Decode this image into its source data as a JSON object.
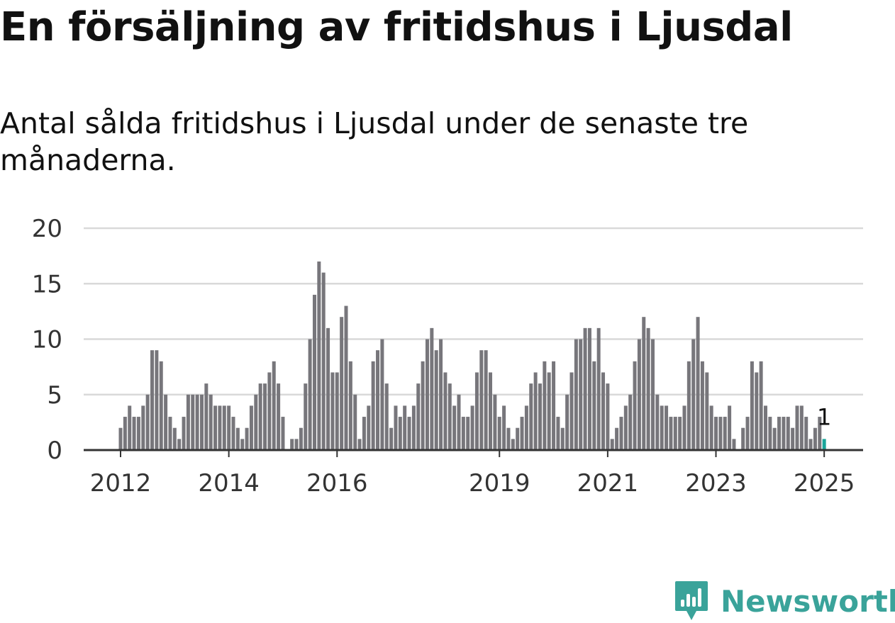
{
  "title": "En försäljning av fritidshus i Ljusdal",
  "subtitle": "Antal sålda fritidshus i Ljusdal under de senaste tre månaderna.",
  "brand": {
    "name": "Newsworthy",
    "icon": "newsworthy-logo-icon",
    "color": "#3aa39a"
  },
  "colors": {
    "bar": "#77767b",
    "highlight": "#1aa59a",
    "grid": "#d9d9d9",
    "axis": "#333333"
  },
  "chart_data": {
    "type": "bar",
    "ylim": [
      0,
      20
    ],
    "yticks": [
      0,
      5,
      10,
      15,
      20
    ],
    "grid": true,
    "xtick_labels": [
      {
        "label": "2012",
        "at": "2012-01"
      },
      {
        "label": "2014",
        "at": "2014-01"
      },
      {
        "label": "2016",
        "at": "2016-01"
      },
      {
        "label": "2019",
        "at": "2019-01"
      },
      {
        "label": "2021",
        "at": "2021-01"
      },
      {
        "label": "2023",
        "at": "2023-01"
      },
      {
        "label": "2025",
        "at": "2025-01"
      }
    ],
    "highlight": {
      "x": "2025-01",
      "value": 1,
      "label": "1"
    },
    "categories": [
      "2012-01",
      "2012-02",
      "2012-03",
      "2012-04",
      "2012-05",
      "2012-06",
      "2012-07",
      "2012-08",
      "2012-09",
      "2012-10",
      "2012-11",
      "2012-12",
      "2013-01",
      "2013-02",
      "2013-03",
      "2013-04",
      "2013-05",
      "2013-06",
      "2013-07",
      "2013-08",
      "2013-09",
      "2013-10",
      "2013-11",
      "2013-12",
      "2014-01",
      "2014-02",
      "2014-03",
      "2014-04",
      "2014-05",
      "2014-06",
      "2014-07",
      "2014-08",
      "2014-09",
      "2014-10",
      "2014-11",
      "2014-12",
      "2015-01",
      "2015-02",
      "2015-03",
      "2015-04",
      "2015-05",
      "2015-06",
      "2015-07",
      "2015-08",
      "2015-09",
      "2015-10",
      "2015-11",
      "2015-12",
      "2016-01",
      "2016-02",
      "2016-03",
      "2016-04",
      "2016-05",
      "2016-06",
      "2016-07",
      "2016-08",
      "2016-09",
      "2016-10",
      "2016-11",
      "2016-12",
      "2017-01",
      "2017-02",
      "2017-03",
      "2017-04",
      "2017-05",
      "2017-06",
      "2017-07",
      "2017-08",
      "2017-09",
      "2017-10",
      "2017-11",
      "2017-12",
      "2018-01",
      "2018-02",
      "2018-03",
      "2018-04",
      "2018-05",
      "2018-06",
      "2018-07",
      "2018-08",
      "2018-09",
      "2018-10",
      "2018-11",
      "2018-12",
      "2019-01",
      "2019-02",
      "2019-03",
      "2019-04",
      "2019-05",
      "2019-06",
      "2019-07",
      "2019-08",
      "2019-09",
      "2019-10",
      "2019-11",
      "2019-12",
      "2020-01",
      "2020-02",
      "2020-03",
      "2020-04",
      "2020-05",
      "2020-06",
      "2020-07",
      "2020-08",
      "2020-09",
      "2020-10",
      "2020-11",
      "2020-12",
      "2021-01",
      "2021-02",
      "2021-03",
      "2021-04",
      "2021-05",
      "2021-06",
      "2021-07",
      "2021-08",
      "2021-09",
      "2021-10",
      "2021-11",
      "2021-12",
      "2022-01",
      "2022-02",
      "2022-03",
      "2022-04",
      "2022-05",
      "2022-06",
      "2022-07",
      "2022-08",
      "2022-09",
      "2022-10",
      "2022-11",
      "2022-12",
      "2023-01",
      "2023-02",
      "2023-03",
      "2023-04",
      "2023-05",
      "2023-06",
      "2023-07",
      "2023-08",
      "2023-09",
      "2023-10",
      "2023-11",
      "2023-12",
      "2024-01",
      "2024-02",
      "2024-03",
      "2024-04",
      "2024-05",
      "2024-06",
      "2024-07",
      "2024-08",
      "2024-09",
      "2024-10",
      "2024-11",
      "2024-12",
      "2025-01"
    ],
    "values": [
      2,
      3,
      4,
      3,
      3,
      4,
      5,
      9,
      9,
      8,
      5,
      3,
      2,
      1,
      3,
      5,
      5,
      5,
      5,
      6,
      5,
      4,
      4,
      4,
      4,
      3,
      2,
      1,
      2,
      4,
      5,
      6,
      6,
      7,
      8,
      6,
      3,
      0,
      1,
      1,
      2,
      6,
      10,
      14,
      17,
      16,
      11,
      7,
      7,
      12,
      13,
      8,
      5,
      1,
      3,
      4,
      8,
      9,
      10,
      6,
      2,
      4,
      3,
      4,
      3,
      4,
      6,
      8,
      10,
      11,
      9,
      10,
      7,
      6,
      4,
      5,
      3,
      3,
      4,
      7,
      9,
      9,
      7,
      5,
      3,
      4,
      2,
      1,
      2,
      3,
      4,
      6,
      7,
      6,
      8,
      7,
      8,
      3,
      2,
      5,
      7,
      10,
      10,
      11,
      11,
      8,
      11,
      7,
      6,
      1,
      2,
      3,
      4,
      5,
      8,
      10,
      12,
      11,
      10,
      5,
      4,
      4,
      3,
      3,
      3,
      4,
      8,
      10,
      12,
      8,
      7,
      4,
      3,
      3,
      3,
      4,
      1,
      0,
      2,
      3,
      8,
      7,
      8,
      4,
      3,
      2,
      3,
      3,
      3,
      2,
      4,
      4,
      3,
      1,
      2,
      3,
      1
    ]
  }
}
